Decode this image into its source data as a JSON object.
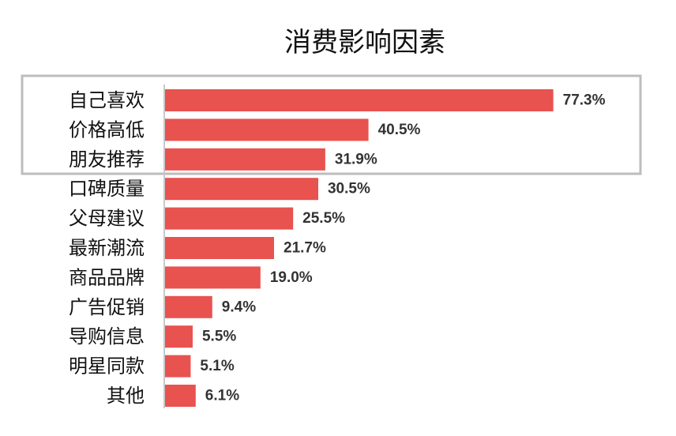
{
  "chart_data": {
    "type": "bar",
    "orientation": "horizontal",
    "title": "消费影响因素",
    "xlabel": "",
    "ylabel": "",
    "xlim": [
      0,
      100
    ],
    "grid": false,
    "categories": [
      "自己喜欢",
      "价格高低",
      "朋友推荐",
      "口碑质量",
      "父母建议",
      "最新潮流",
      "商品品牌",
      "广告促销",
      "导购信息",
      "明星同款",
      "其他"
    ],
    "values": [
      77.3,
      40.5,
      31.9,
      30.5,
      25.5,
      21.7,
      19.0,
      9.4,
      5.5,
      5.1,
      6.1
    ],
    "value_labels": [
      "77.3%",
      "40.5%",
      "31.9%",
      "30.5%",
      "25.5%",
      "21.7%",
      "19.0%",
      "9.4%",
      "5.5%",
      "5.1%",
      "6.1%"
    ],
    "highlighted_categories": [
      "自己喜欢",
      "价格高低",
      "朋友推荐"
    ],
    "emphasized_label": "77.3%"
  },
  "colors": {
    "bar": "#E8524F",
    "emphasis_label": "#E8524F",
    "value_label": "#333333",
    "category_label": "#111111",
    "axis_line": "#c8c8c8",
    "highlight_box": "#bdbdbd"
  }
}
